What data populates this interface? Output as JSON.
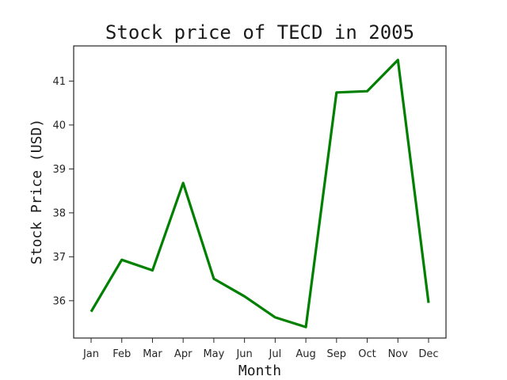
{
  "chart_data": {
    "type": "line",
    "title": "Stock price of TECD in 2005",
    "xlabel": "Month",
    "ylabel": "Stock Price (USD)",
    "categories": [
      "Jan",
      "Feb",
      "Mar",
      "Apr",
      "May",
      "Jun",
      "Jul",
      "Aug",
      "Sep",
      "Oct",
      "Nov",
      "Dec"
    ],
    "series": [
      {
        "values": [
          35.75,
          36.93,
          36.69,
          38.68,
          36.5,
          36.1,
          35.62,
          35.4,
          40.74,
          40.77,
          41.48,
          35.95
        ],
        "color": "#008000"
      }
    ],
    "yticks": [
      36,
      37,
      38,
      39,
      40,
      41
    ],
    "ylim": [
      35.15,
      41.8
    ],
    "grid": false,
    "legend": "none"
  }
}
